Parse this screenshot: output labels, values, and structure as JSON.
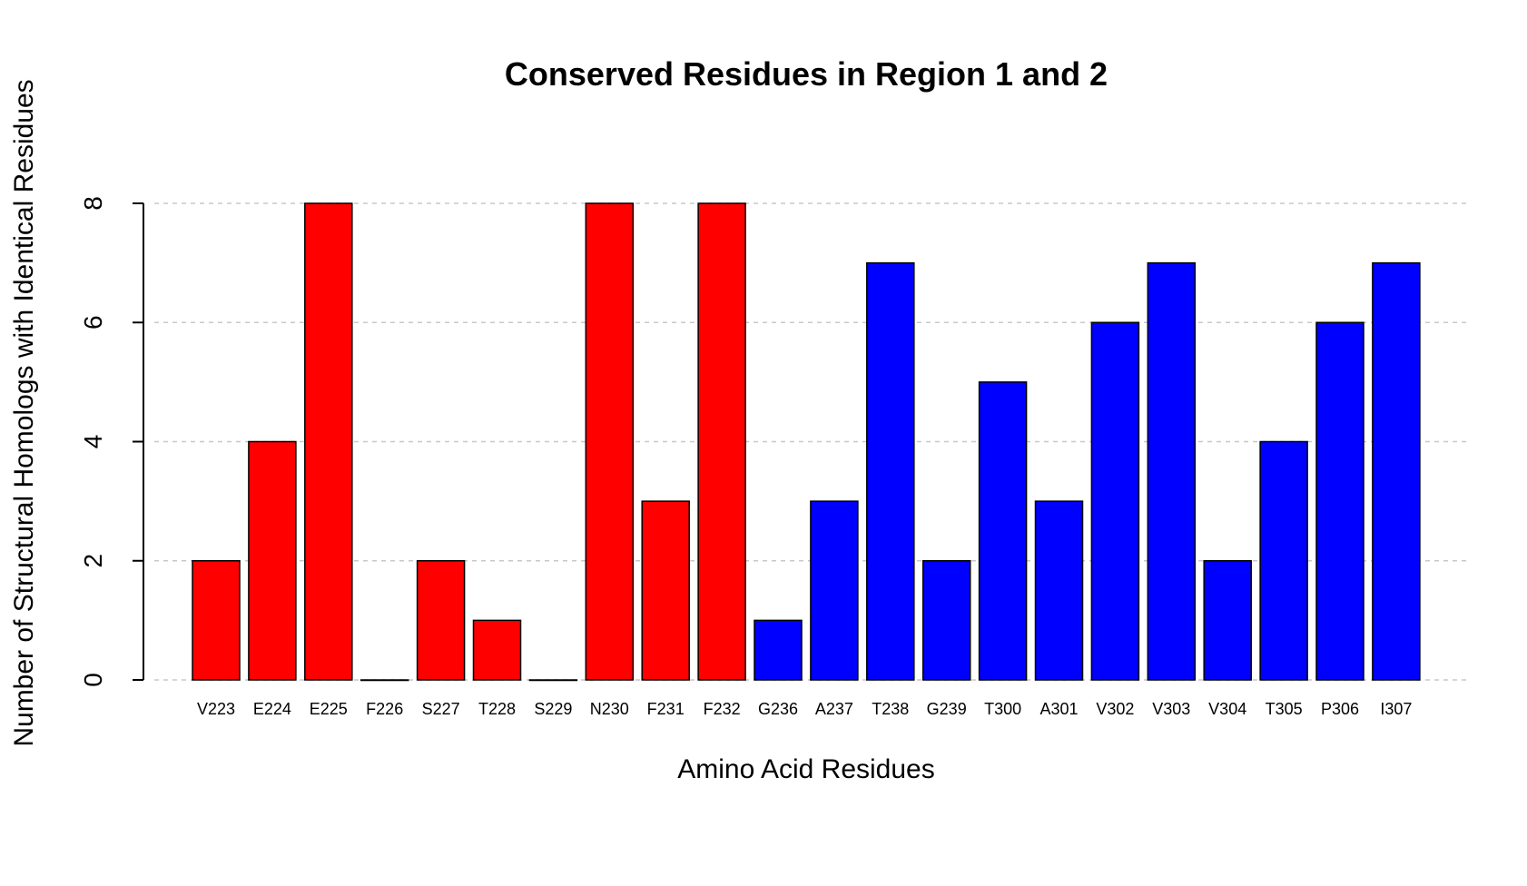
{
  "chart_data": {
    "type": "bar",
    "title": "Conserved Residues in Region 1 and 2",
    "xlabel": "Amino Acid Residues",
    "ylabel": "Number of Structural Homologs with Identical Residues",
    "ylim": [
      0,
      8
    ],
    "yticks": [
      0,
      2,
      4,
      6,
      8
    ],
    "grid": true,
    "categories": [
      "V223",
      "E224",
      "E225",
      "F226",
      "S227",
      "T228",
      "S229",
      "N230",
      "F231",
      "F232",
      "G236",
      "A237",
      "T238",
      "G239",
      "T300",
      "A301",
      "V302",
      "V303",
      "V304",
      "T305",
      "P306",
      "I307"
    ],
    "values": [
      2,
      4,
      8,
      0,
      2,
      1,
      0,
      8,
      3,
      8,
      1,
      3,
      7,
      2,
      5,
      3,
      6,
      7,
      2,
      4,
      6,
      7
    ],
    "colors": [
      "#ff0000",
      "#ff0000",
      "#ff0000",
      "#ff0000",
      "#ff0000",
      "#ff0000",
      "#ff0000",
      "#ff0000",
      "#ff0000",
      "#ff0000",
      "#0000ff",
      "#0000ff",
      "#0000ff",
      "#0000ff",
      "#0000ff",
      "#0000ff",
      "#0000ff",
      "#0000ff",
      "#0000ff",
      "#0000ff",
      "#0000ff",
      "#0000ff"
    ]
  }
}
